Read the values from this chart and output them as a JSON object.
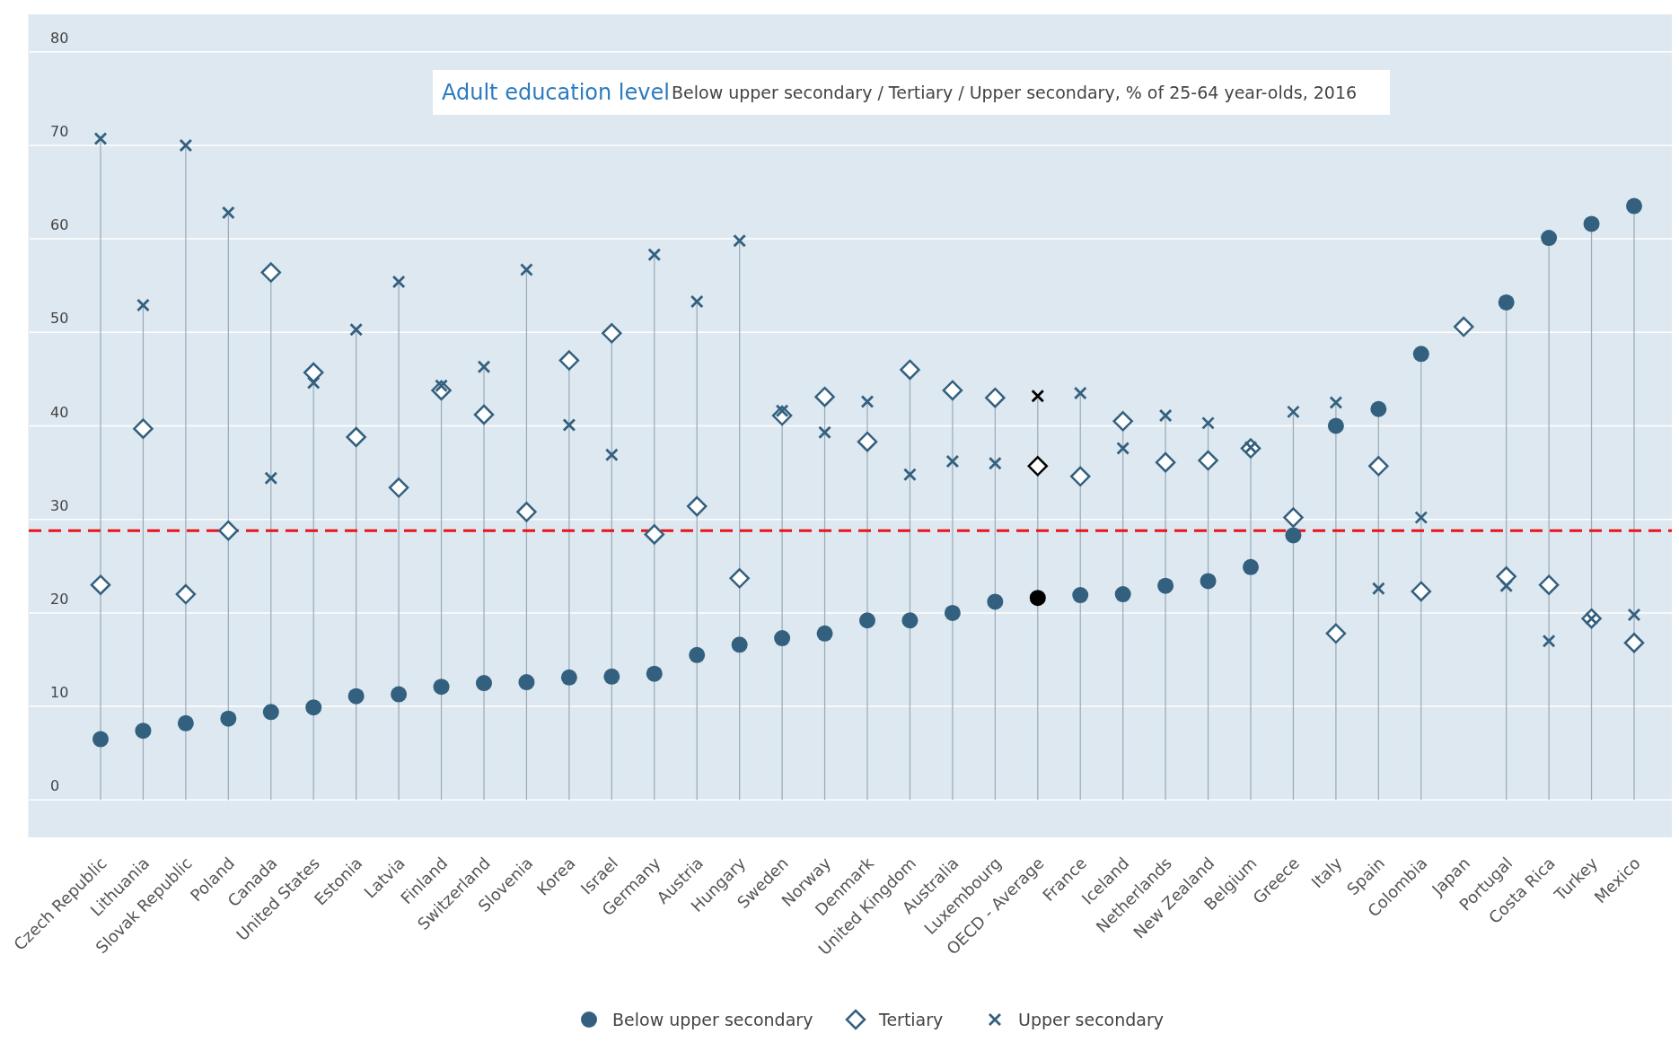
{
  "chart_data": {
    "type": "scatter",
    "title": "Adult education level",
    "subtitle": "Below upper secondary / Tertiary / Upper secondary, % of 25-64 year-olds, 2016",
    "categories": [
      "Czech Republic",
      "Lithuania",
      "Slovak Republic",
      "Poland",
      "Canada",
      "United States",
      "Estonia",
      "Latvia",
      "Finland",
      "Switzerland",
      "Slovenia",
      "Korea",
      "Israel",
      "Germany",
      "Austria",
      "Hungary",
      "Sweden",
      "Norway",
      "Denmark",
      "United Kingdom",
      "Australia",
      "Luxembourg",
      "OECD - Average",
      "France",
      "Iceland",
      "Netherlands",
      "New Zealand",
      "Belgium",
      "Greece",
      "Italy",
      "Spain",
      "Colombia",
      "Japan",
      "Portugal",
      "Costa Rica",
      "Turkey",
      "Mexico"
    ],
    "series": [
      {
        "name": "Below upper secondary",
        "marker": "circle",
        "color": "#33607f",
        "colors": [
          "#33607f",
          "#33607f",
          "#33607f",
          "#33607f",
          "#33607f",
          "#33607f",
          "#33607f",
          "#33607f",
          "#33607f",
          "#33607f",
          "#33607f",
          "#33607f",
          "#33607f",
          "#33607f",
          "#33607f",
          "#33607f",
          "#33607f",
          "#33607f",
          "#33607f",
          "#33607f",
          "#33607f",
          "#33607f",
          "#000000",
          "#33607f",
          "#33607f",
          "#33607f",
          "#33607f",
          "#33607f",
          "#33607f",
          "#33607f",
          "#33607f",
          "#33607f",
          null,
          "#33607f",
          "#33607f",
          "#33607f",
          "#33607f"
        ],
        "values": [
          6.5,
          7.4,
          8.2,
          8.7,
          9.4,
          9.9,
          11.1,
          11.3,
          12.1,
          12.5,
          12.6,
          13.1,
          13.2,
          13.5,
          15.5,
          16.6,
          17.3,
          17.8,
          19.2,
          19.2,
          20,
          21.2,
          21.6,
          21.9,
          22,
          22.9,
          23.4,
          24.9,
          28.3,
          40,
          41.8,
          47.7,
          null,
          53.2,
          60.1,
          61.6,
          63.5
        ]
      },
      {
        "name": "Tertiary",
        "marker": "diamond",
        "color": "#33607f",
        "colors": [
          "#33607f",
          "#33607f",
          "#33607f",
          "#33607f",
          "#33607f",
          "#33607f",
          "#33607f",
          "#33607f",
          "#33607f",
          "#33607f",
          "#33607f",
          "#33607f",
          "#33607f",
          "#33607f",
          "#33607f",
          "#33607f",
          "#33607f",
          "#33607f",
          "#33607f",
          "#33607f",
          "#33607f",
          "#33607f",
          "#000000",
          "#33607f",
          "#33607f",
          "#33607f",
          "#33607f",
          "#33607f",
          "#33607f",
          "#33607f",
          "#33607f",
          "#33607f",
          "#33607f",
          "#33607f",
          "#33607f",
          "#33607f",
          "#33607f"
        ],
        "values": [
          23,
          39.7,
          22,
          28.8,
          56.4,
          45.7,
          38.8,
          33.4,
          43.8,
          41.2,
          30.8,
          47,
          49.9,
          28.4,
          31.4,
          23.7,
          41.1,
          43.1,
          38.3,
          46,
          43.8,
          43,
          35.7,
          34.6,
          40.5,
          36.1,
          36.3,
          37.6,
          30.2,
          17.8,
          35.7,
          22.3,
          50.6,
          23.9,
          23,
          19.4,
          16.8
        ]
      },
      {
        "name": "Upper secondary",
        "marker": "cross",
        "color": "#33607f",
        "colors": [
          "#33607f",
          "#33607f",
          "#33607f",
          "#33607f",
          "#33607f",
          "#33607f",
          "#33607f",
          "#33607f",
          "#33607f",
          "#33607f",
          "#33607f",
          "#33607f",
          "#33607f",
          "#33607f",
          "#33607f",
          "#33607f",
          "#33607f",
          "#33607f",
          "#33607f",
          "#33607f",
          "#33607f",
          "#33607f",
          "#000000",
          "#33607f",
          "#33607f",
          "#33607f",
          "#33607f",
          "#33607f",
          "#33607f",
          "#33607f",
          "#33607f",
          "#33607f",
          null,
          "#33607f",
          "#33607f",
          "#33607f",
          "#33607f"
        ],
        "values": [
          70.7,
          52.9,
          70,
          62.8,
          34.4,
          44.6,
          50.3,
          55.4,
          44.3,
          46.3,
          56.7,
          40.1,
          36.9,
          58.3,
          53.3,
          59.8,
          41.6,
          39.3,
          42.6,
          34.8,
          36.2,
          36,
          43.2,
          43.5,
          37.6,
          41.1,
          40.3,
          37.7,
          41.5,
          42.5,
          22.6,
          30.2,
          null,
          22.9,
          17,
          19.4,
          19.8
        ]
      }
    ],
    "ylim": [
      -4,
      84
    ],
    "yticks": [
      0,
      10,
      20,
      30,
      40,
      50,
      60,
      70,
      80
    ],
    "grid": true,
    "legend": "bottom",
    "ref_lines": [
      {
        "axis": "y",
        "value": 28.8,
        "color": "#e8141b",
        "line_style": "dashed"
      }
    ]
  }
}
